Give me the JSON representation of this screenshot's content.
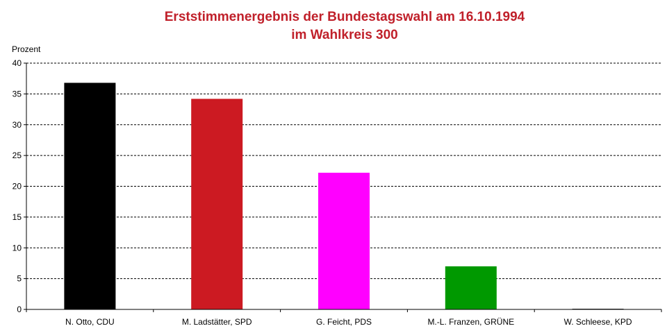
{
  "chart_data": {
    "type": "bar",
    "title": "Erststimmenergebnis der Bundestagswahl am 16.10.1994",
    "subtitle": "im Wahlkreis 300",
    "ylabel": "Prozent",
    "xlabel": "",
    "ylim": [
      0,
      40
    ],
    "yticks": [
      0,
      5,
      10,
      15,
      20,
      25,
      30,
      35,
      40
    ],
    "grid": true,
    "categories": [
      "N. Otto, CDU",
      "M. Ladstätter, SPD",
      "G. Feicht, PDS",
      "M.-L. Franzen, GRÜNE",
      "W. Schleese, KPD"
    ],
    "values": [
      36.8,
      34.2,
      22.2,
      7.0,
      0.1
    ],
    "colors": [
      "#000000",
      "#cc1a22",
      "#ff00ff",
      "#009900",
      "#000000"
    ]
  }
}
